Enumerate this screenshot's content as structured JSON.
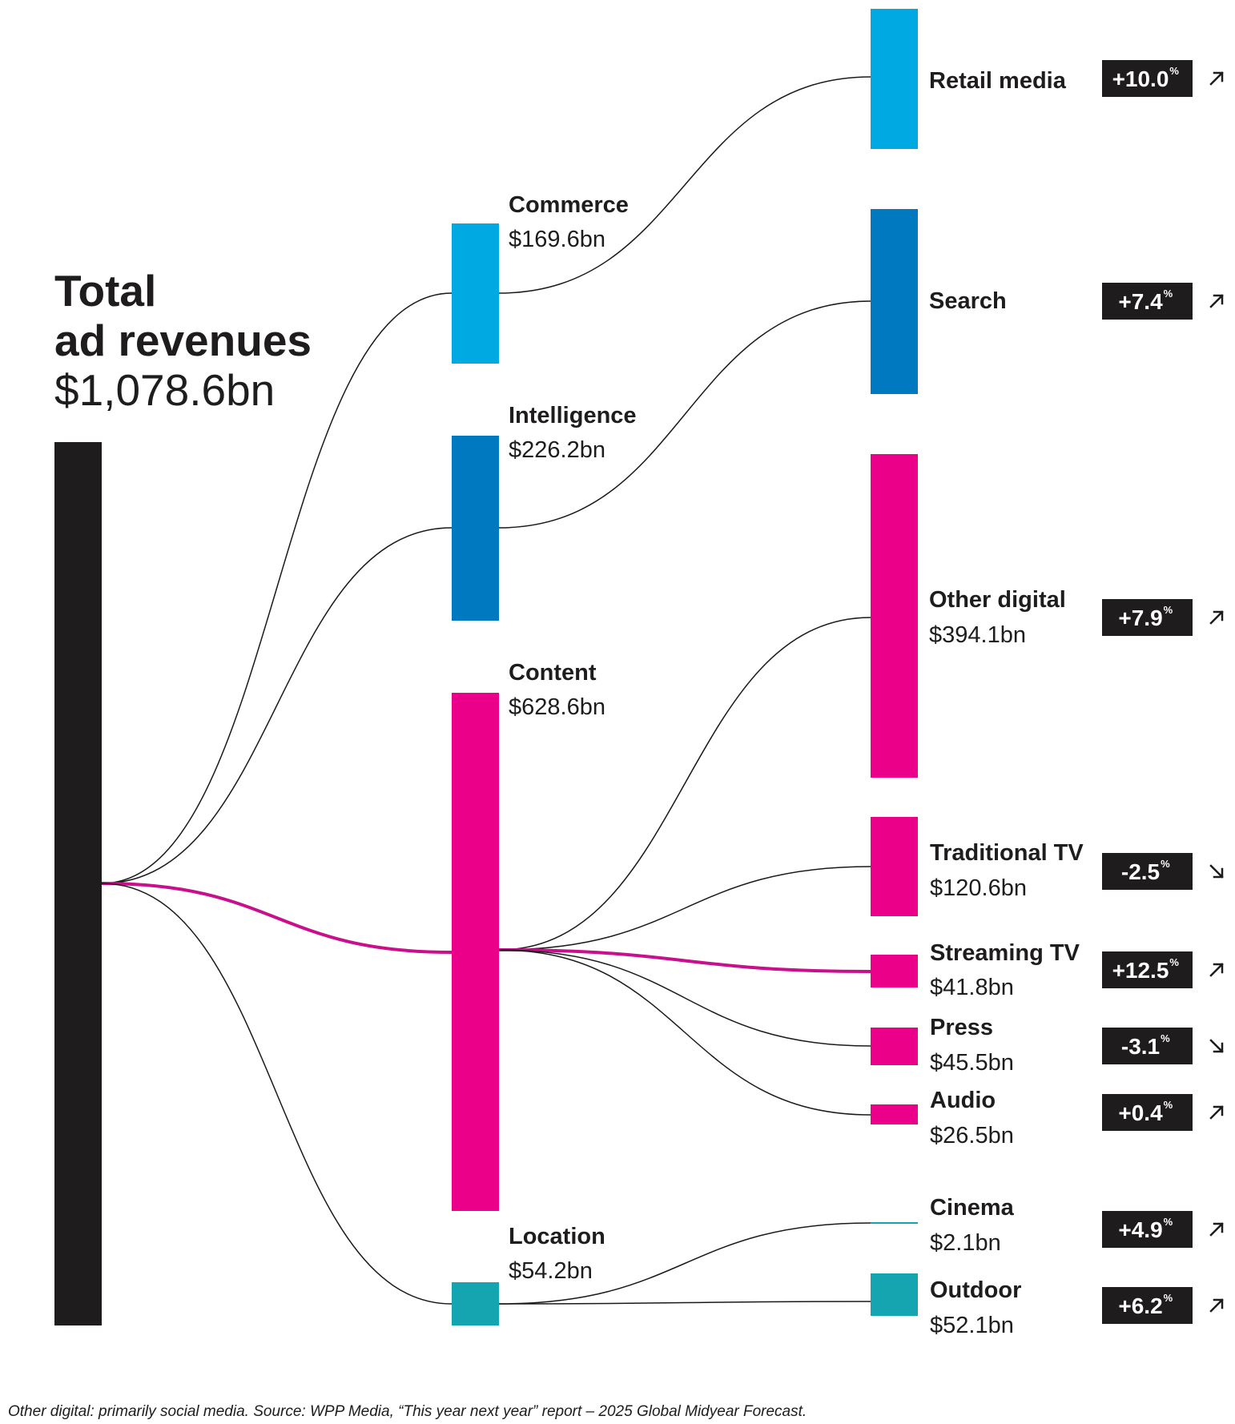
{
  "chart_data": {
    "type": "sankey",
    "title_line1": "Total",
    "title_line2": "ad revenues",
    "total": "$1,078.6bn",
    "total_value": 1078.6,
    "colors": {
      "total": "#1e1c1c",
      "commerce": "#00a9e2",
      "intelligence": "#0079c1",
      "content": "#ea0089",
      "location": "#15a5b0",
      "link": "#1a1a1a",
      "highlight": "#c80f8c"
    },
    "categories": [
      {
        "id": "commerce",
        "name": "Commerce",
        "value_label": "$169.6bn",
        "value": 169.6,
        "color": "#00a9e2"
      },
      {
        "id": "intelligence",
        "name": "Intelligence",
        "value_label": "$226.2bn",
        "value": 226.2,
        "color": "#0079c1"
      },
      {
        "id": "content",
        "name": "Content",
        "value_label": "$628.6bn",
        "value": 628.6,
        "color": "#ea0089"
      },
      {
        "id": "location",
        "name": "Location",
        "value_label": "$54.2bn",
        "value": 54.2,
        "color": "#15a5b0"
      }
    ],
    "channels": [
      {
        "id": "retail-media",
        "parent": "commerce",
        "name": "Retail media",
        "value": 169.6,
        "growth": "+10.0",
        "direction": "up",
        "color": "#00a9e2"
      },
      {
        "id": "search",
        "parent": "intelligence",
        "name": "Search",
        "value": 226.2,
        "growth": "+7.4",
        "direction": "up",
        "color": "#0079c1"
      },
      {
        "id": "other-digital",
        "parent": "content",
        "name": "Other digital",
        "value_label": "$394.1bn",
        "value": 394.1,
        "growth": "+7.9",
        "direction": "up",
        "color": "#ea0089"
      },
      {
        "id": "traditional-tv",
        "parent": "content",
        "name": "Traditional TV",
        "value_label": "$120.6bn",
        "value": 120.6,
        "growth": "-2.5",
        "direction": "down",
        "color": "#ea0089"
      },
      {
        "id": "streaming-tv",
        "parent": "content",
        "name": "Streaming TV",
        "value_label": "$41.8bn",
        "value": 41.8,
        "growth": "+12.5",
        "direction": "up",
        "color": "#ea0089",
        "highlight": true
      },
      {
        "id": "press",
        "parent": "content",
        "name": "Press",
        "value_label": "$45.5bn",
        "value": 45.5,
        "growth": "-3.1",
        "direction": "down",
        "color": "#ea0089"
      },
      {
        "id": "audio",
        "parent": "content",
        "name": "Audio",
        "value_label": "$26.5bn",
        "value": 26.5,
        "growth": "+0.4",
        "direction": "up",
        "color": "#ea0089"
      },
      {
        "id": "cinema",
        "parent": "location",
        "name": "Cinema",
        "value_label": "$2.1bn",
        "value": 2.1,
        "growth": "+4.9",
        "direction": "up",
        "color": "#15a5b0"
      },
      {
        "id": "outdoor",
        "parent": "location",
        "name": "Outdoor",
        "value_label": "$52.1bn",
        "value": 52.1,
        "growth": "+6.2",
        "direction": "up",
        "color": "#15a5b0"
      }
    ],
    "percent_sign": "%",
    "footnote": "Other digital: primarily social media. Source: WPP Media, “This year next year” report – 2025 Global Midyear Forecast."
  }
}
